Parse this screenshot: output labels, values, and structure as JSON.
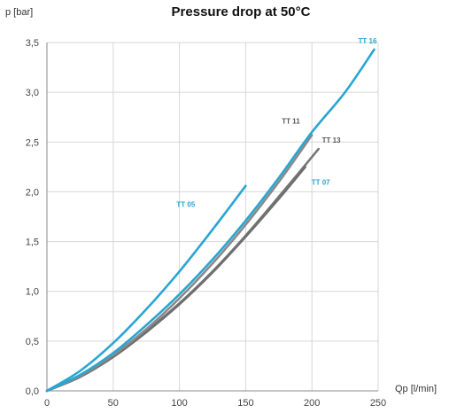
{
  "chart_data": {
    "type": "line",
    "title": "Pressure drop at 50°C",
    "ylabel": "p [bar]",
    "xlabel": "Qp [l/min]",
    "xlim": [
      0,
      250
    ],
    "ylim": [
      0,
      3.5
    ],
    "x_ticks": [
      0,
      50,
      100,
      150,
      200,
      250
    ],
    "x_tick_labels": [
      "0",
      "50",
      "100",
      "150",
      "200",
      "250"
    ],
    "y_ticks": [
      0,
      0.5,
      1.0,
      1.5,
      2.0,
      2.5,
      3.0,
      3.5
    ],
    "y_tick_labels": [
      "0,0",
      "0,5",
      "1,0",
      "1,5",
      "2,0",
      "2,5",
      "3,0",
      "3,5"
    ],
    "grid": true,
    "series": [
      {
        "name": "TT 11",
        "color": "#8a8a8a",
        "label_color": "#555555",
        "points": [
          [
            0,
            0
          ],
          [
            25,
            0.15
          ],
          [
            50,
            0.36
          ],
          [
            75,
            0.62
          ],
          [
            100,
            0.93
          ],
          [
            125,
            1.28
          ],
          [
            150,
            1.67
          ],
          [
            175,
            2.1
          ],
          [
            200,
            2.57
          ]
        ]
      },
      {
        "name": "TT 13",
        "color": "#777777",
        "label_color": "#555555",
        "points": [
          [
            0,
            0
          ],
          [
            25,
            0.15
          ],
          [
            50,
            0.35
          ],
          [
            75,
            0.6
          ],
          [
            100,
            0.88
          ],
          [
            125,
            1.2
          ],
          [
            150,
            1.56
          ],
          [
            175,
            1.95
          ],
          [
            205,
            2.43
          ]
        ]
      },
      {
        "name": "TT 16",
        "color": "#2aa5d2",
        "label_color": "#2aa5d2",
        "points": [
          [
            0,
            0
          ],
          [
            25,
            0.16
          ],
          [
            50,
            0.38
          ],
          [
            75,
            0.66
          ],
          [
            100,
            0.97
          ],
          [
            125,
            1.32
          ],
          [
            150,
            1.71
          ],
          [
            175,
            2.14
          ],
          [
            200,
            2.6
          ],
          [
            225,
            3.0
          ],
          [
            247,
            3.43
          ]
        ]
      },
      {
        "name": "TT 07",
        "color": "#6e6e6e",
        "label_color": "#2aa5d2",
        "points": [
          [
            0,
            0
          ],
          [
            25,
            0.14
          ],
          [
            50,
            0.34
          ],
          [
            75,
            0.59
          ],
          [
            100,
            0.87
          ],
          [
            125,
            1.19
          ],
          [
            150,
            1.55
          ],
          [
            175,
            1.93
          ],
          [
            195,
            2.25
          ]
        ]
      },
      {
        "name": "TT 05",
        "color": "#2aa5d2",
        "label_color": "#2aa5d2",
        "points": [
          [
            0,
            0
          ],
          [
            25,
            0.2
          ],
          [
            50,
            0.48
          ],
          [
            75,
            0.82
          ],
          [
            100,
            1.2
          ],
          [
            125,
            1.62
          ],
          [
            150,
            2.06
          ]
        ]
      }
    ]
  }
}
